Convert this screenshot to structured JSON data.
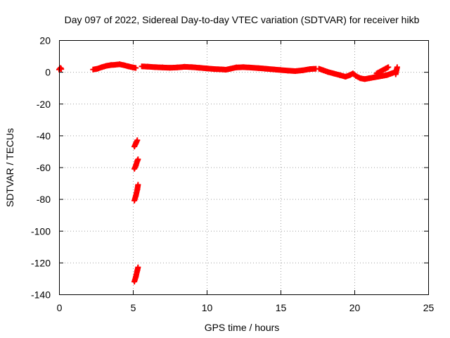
{
  "chart_data": {
    "type": "scatter",
    "title": "Day 097 of 2022, Sidereal Day-to-day VTEC variation (SDTVAR) for receiver hikb",
    "xlabel": "GPS time / hours",
    "ylabel": "SDTVAR / TECUs",
    "xlim": [
      0,
      25
    ],
    "ylim": [
      -140,
      20
    ],
    "xticks": [
      0,
      5,
      10,
      15,
      20,
      25
    ],
    "yticks": [
      20,
      0,
      -20,
      -40,
      -60,
      -80,
      -100,
      -120,
      -140
    ],
    "grid": true,
    "marker": "plus",
    "series": [
      {
        "name": "SDTVAR",
        "color": "#ff0000",
        "segments": [
          [
            [
              0.0,
              1.5
            ],
            [
              0.1,
              2.5
            ],
            [
              0.15,
              1.8
            ]
          ],
          [
            [
              2.3,
              1.5
            ],
            [
              2.6,
              2.0
            ],
            [
              2.9,
              3.0
            ],
            [
              3.2,
              3.8
            ],
            [
              3.5,
              4.3
            ],
            [
              3.8,
              4.5
            ],
            [
              4.1,
              4.8
            ],
            [
              4.4,
              4.2
            ],
            [
              4.7,
              3.5
            ],
            [
              5.0,
              2.8
            ],
            [
              5.2,
              2.5
            ]
          ],
          [
            [
              5.6,
              3.5
            ],
            [
              6.0,
              3.3
            ],
            [
              6.5,
              3.0
            ],
            [
              7.0,
              2.8
            ],
            [
              7.5,
              2.6
            ],
            [
              8.0,
              2.8
            ],
            [
              8.5,
              3.2
            ],
            [
              9.0,
              3.0
            ],
            [
              9.5,
              2.6
            ],
            [
              10.0,
              2.2
            ],
            [
              10.5,
              1.8
            ],
            [
              11.0,
              1.6
            ],
            [
              11.3,
              1.4
            ],
            [
              11.6,
              2.0
            ],
            [
              12.0,
              2.8
            ],
            [
              12.5,
              3.0
            ],
            [
              13.0,
              2.7
            ],
            [
              13.5,
              2.4
            ],
            [
              14.0,
              2.0
            ],
            [
              14.5,
              1.6
            ],
            [
              15.0,
              1.2
            ],
            [
              15.5,
              0.8
            ],
            [
              16.0,
              0.5
            ],
            [
              16.5,
              1.0
            ],
            [
              17.0,
              1.8
            ],
            [
              17.4,
              2.0
            ]
          ],
          [
            [
              17.6,
              2.0
            ],
            [
              17.9,
              1.0
            ],
            [
              18.2,
              0.0
            ],
            [
              18.6,
              -1.0
            ],
            [
              19.0,
              -2.0
            ],
            [
              19.4,
              -3.0
            ],
            [
              19.7,
              -2.0
            ],
            [
              19.9,
              -1.0
            ],
            [
              20.1,
              -2.5
            ],
            [
              20.4,
              -4.0
            ],
            [
              20.7,
              -4.5
            ],
            [
              21.0,
              -4.0
            ],
            [
              21.3,
              -3.5
            ],
            [
              21.6,
              -3.0
            ],
            [
              21.9,
              -2.5
            ],
            [
              22.2,
              -2.0
            ],
            [
              22.5,
              -1.0
            ],
            [
              22.8,
              0.0
            ]
          ],
          [
            [
              21.5,
              -1.0
            ],
            [
              21.8,
              0.5
            ],
            [
              22.1,
              2.0
            ],
            [
              22.3,
              3.0
            ]
          ],
          [
            [
              22.8,
              -1.5
            ],
            [
              22.85,
              1.0
            ],
            [
              22.9,
              3.0
            ]
          ],
          [
            [
              5.1,
              -47
            ],
            [
              5.2,
              -45
            ],
            [
              5.3,
              -43
            ]
          ],
          [
            [
              5.1,
              -61
            ],
            [
              5.2,
              -59
            ],
            [
              5.3,
              -56
            ],
            [
              5.35,
              -55
            ]
          ],
          [
            [
              5.1,
              -81
            ],
            [
              5.2,
              -78
            ],
            [
              5.3,
              -74
            ],
            [
              5.35,
              -71
            ]
          ],
          [
            [
              5.1,
              -132
            ],
            [
              5.2,
              -129
            ],
            [
              5.3,
              -125
            ],
            [
              5.35,
              -123
            ]
          ]
        ]
      }
    ]
  }
}
